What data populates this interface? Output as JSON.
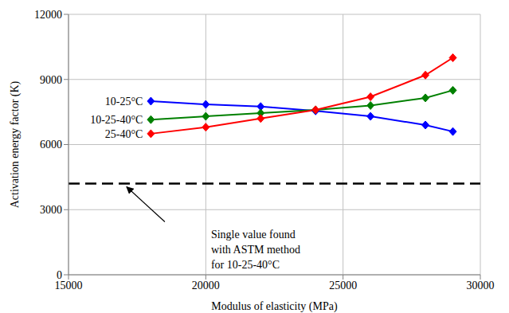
{
  "chart_data": {
    "type": "line",
    "x_label": "Modulus of elasticity (MPa)",
    "y_label": "Activation energy factor (K)",
    "x": [
      18000,
      20000,
      22000,
      24000,
      26000,
      28000,
      29000
    ],
    "series": [
      {
        "name": "10-25°C",
        "color": "#0000ff",
        "values": [
          8000,
          7850,
          7750,
          7550,
          7300,
          6900,
          6600
        ]
      },
      {
        "name": "10-25-40°C",
        "color": "#008000",
        "values": [
          7150,
          7300,
          7450,
          7600,
          7800,
          8150,
          8500
        ]
      },
      {
        "name": "25-40°C",
        "color": "#ff0000",
        "values": [
          6500,
          6800,
          7200,
          7600,
          8200,
          9200,
          10000
        ]
      }
    ],
    "reference_line": {
      "x": [
        15000,
        30000
      ],
      "values": [
        4200,
        4200
      ],
      "color": "#000000",
      "line_style": "dashed"
    },
    "annotation": {
      "text": [
        "Single value found",
        "with ASTM method",
        "for 10-25-40°C"
      ],
      "x": 17000,
      "y": 4200
    },
    "xlim": [
      15000,
      30000
    ],
    "xticks": [
      15000,
      20000,
      25000,
      30000
    ],
    "ylim": [
      0,
      12000
    ],
    "yticks": [
      0,
      3000,
      6000,
      9000,
      12000
    ],
    "grid": true,
    "marker": "diamond"
  }
}
